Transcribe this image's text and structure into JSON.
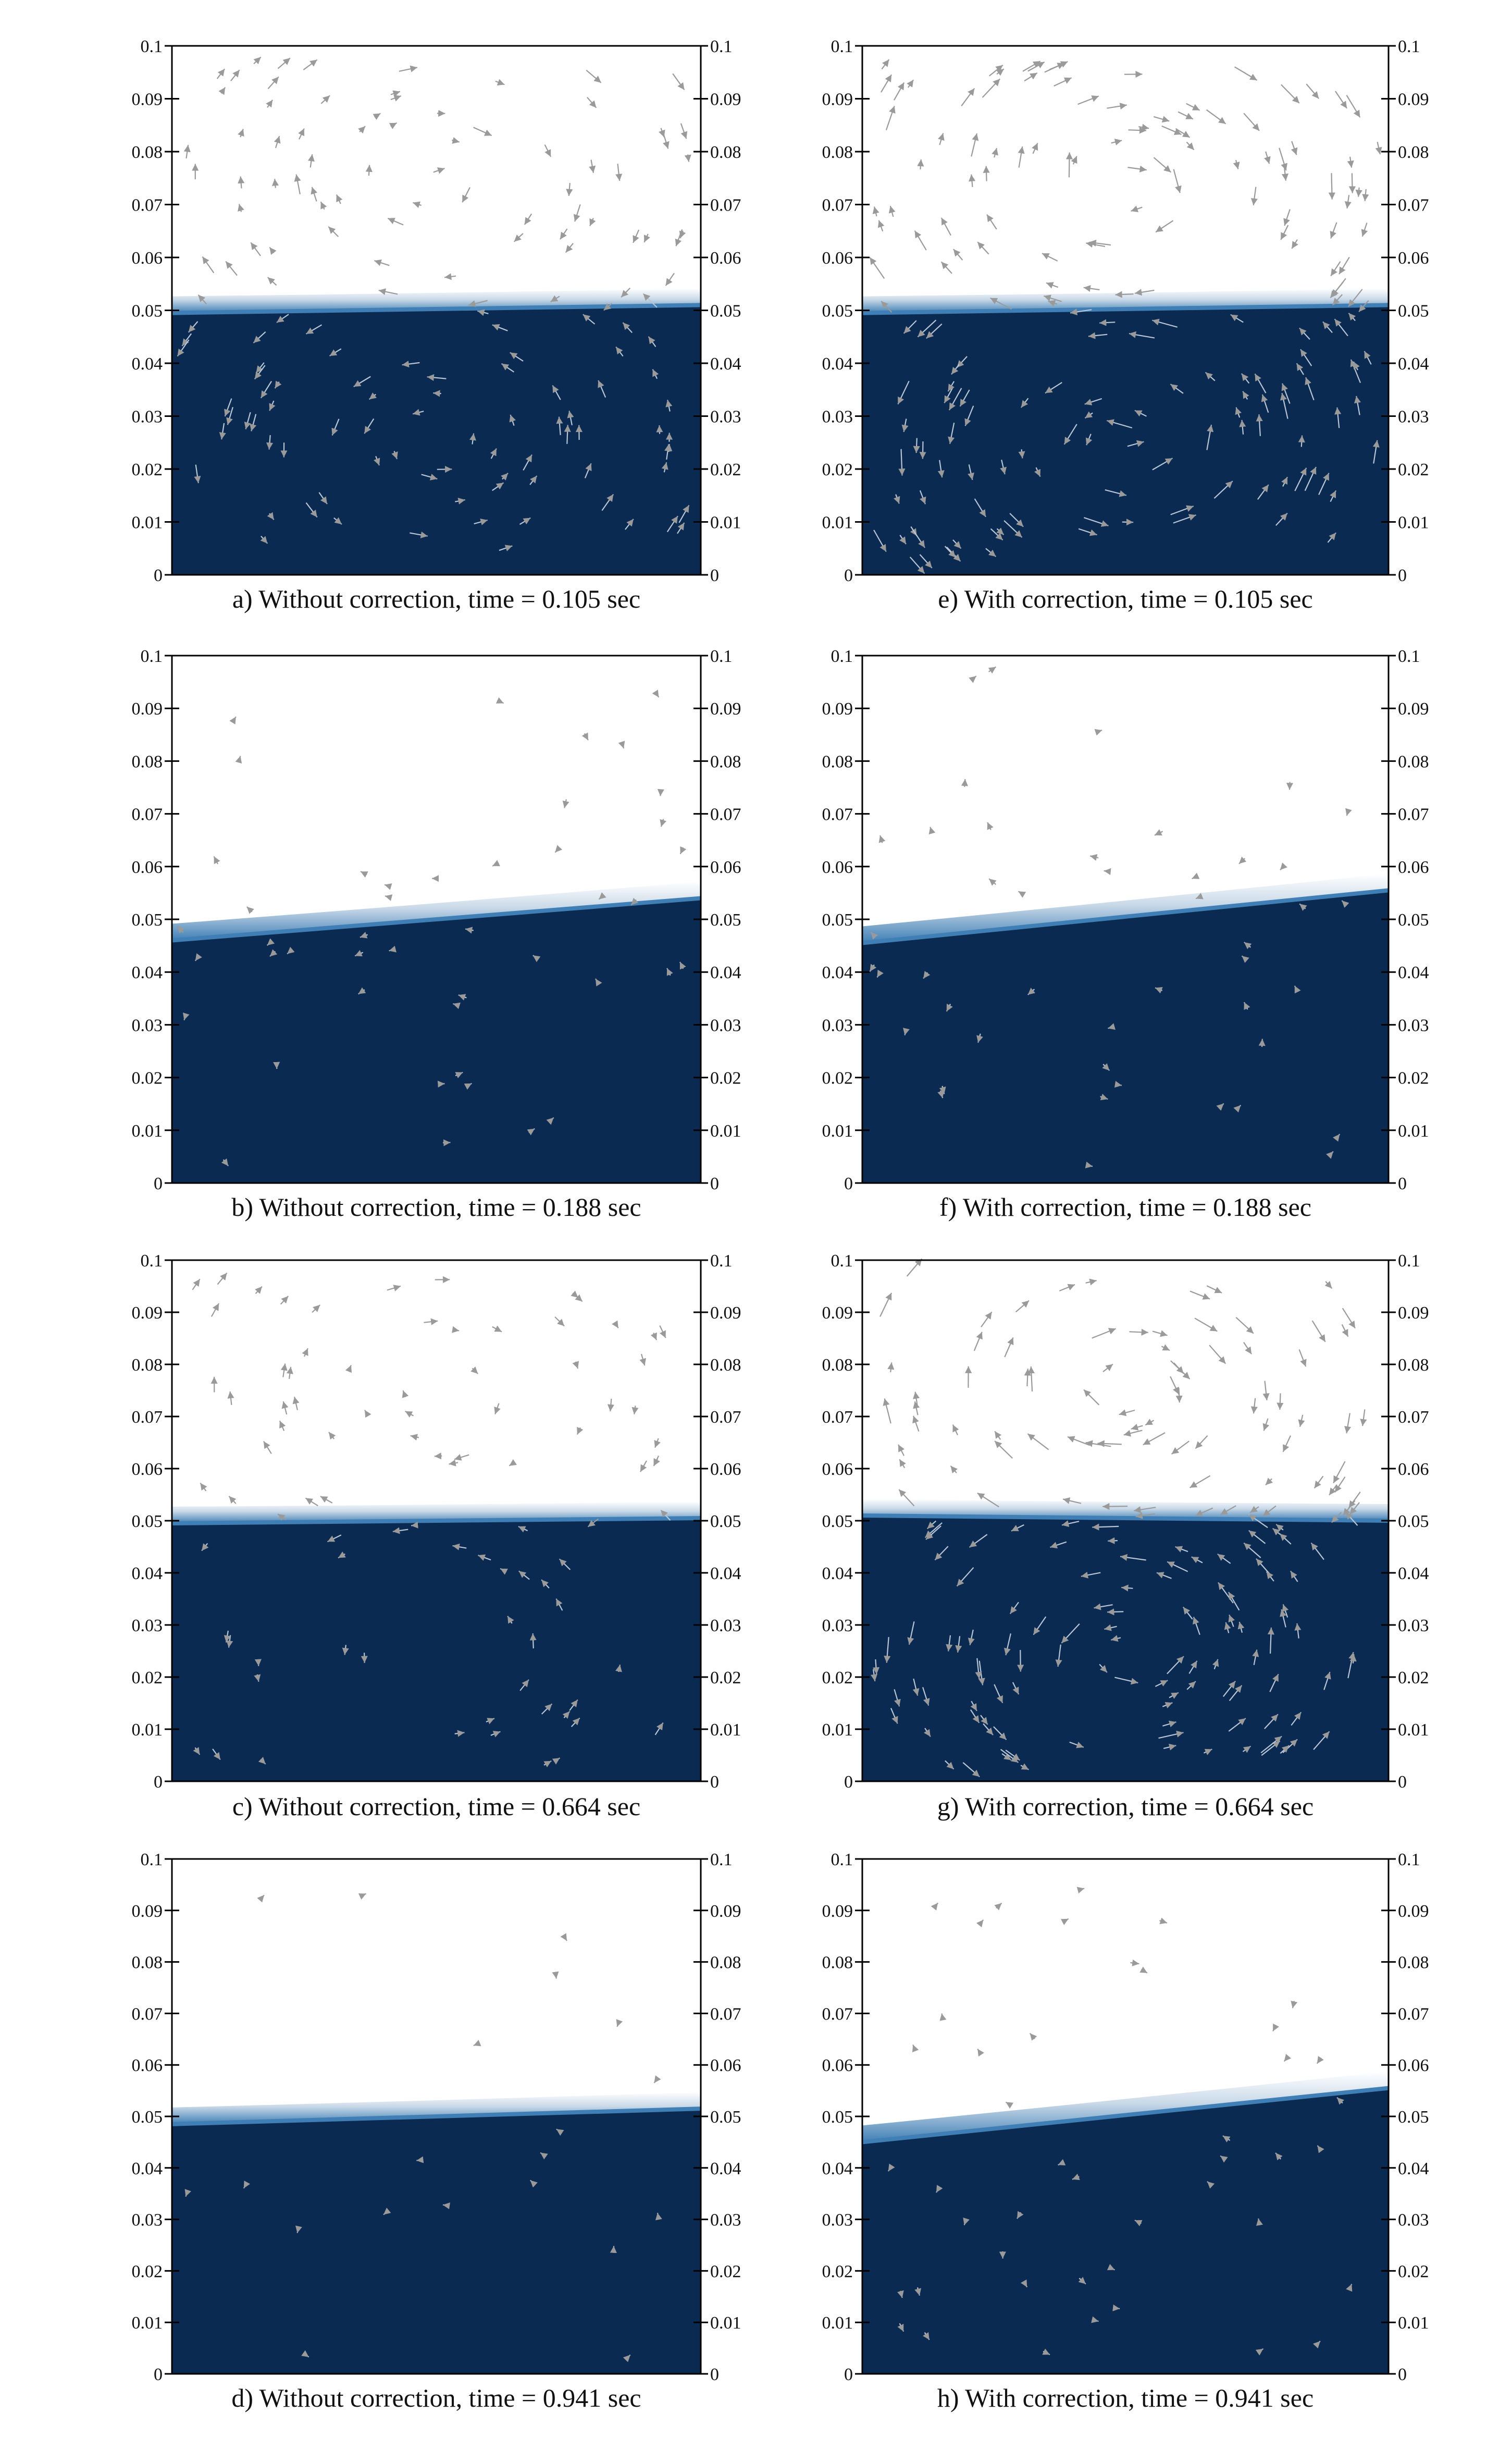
{
  "panels": [
    {
      "id": "a",
      "caption": "a) Without correction, time = 0.105 sec",
      "interface_left": 0.0495,
      "interface_right": 0.051,
      "arrow_intensity": "medium"
    },
    {
      "id": "e",
      "caption": "e) With correction, time = 0.105 sec",
      "interface_left": 0.0495,
      "interface_right": 0.051,
      "arrow_intensity": "high"
    },
    {
      "id": "b",
      "caption": "b) Without correction, time = 0.188 sec",
      "interface_left": 0.046,
      "interface_right": 0.054,
      "arrow_intensity": "sparse"
    },
    {
      "id": "f",
      "caption": "f) With correction, time = 0.188 sec",
      "interface_left": 0.0455,
      "interface_right": 0.0555,
      "arrow_intensity": "sparse"
    },
    {
      "id": "c",
      "caption": "c) Without correction, time = 0.664 sec",
      "interface_left": 0.0495,
      "interface_right": 0.0505,
      "arrow_intensity": "light"
    },
    {
      "id": "g",
      "caption": "g) With correction, time = 0.664 sec",
      "interface_left": 0.051,
      "interface_right": 0.05,
      "arrow_intensity": "high"
    },
    {
      "id": "d",
      "caption": "d) Without correction, time = 0.941 sec",
      "interface_left": 0.0485,
      "interface_right": 0.0515,
      "arrow_intensity": "minimal"
    },
    {
      "id": "h",
      "caption": "h) With correction, time = 0.941 sec",
      "interface_left": 0.045,
      "interface_right": 0.0555,
      "arrow_intensity": "sparse"
    }
  ],
  "axis": {
    "ylim": [
      0,
      0.1
    ],
    "tick_labels": [
      "0",
      "0.01",
      "0.02",
      "0.03",
      "0.04",
      "0.05",
      "0.06",
      "0.07",
      "0.08",
      "0.09",
      "0.1"
    ]
  },
  "colors": {
    "liquid": "#0b2a52",
    "interface": "#3f7fb5",
    "gas": "#ffffff",
    "arrow": "#9a9a9a",
    "frame": "#000000"
  }
}
